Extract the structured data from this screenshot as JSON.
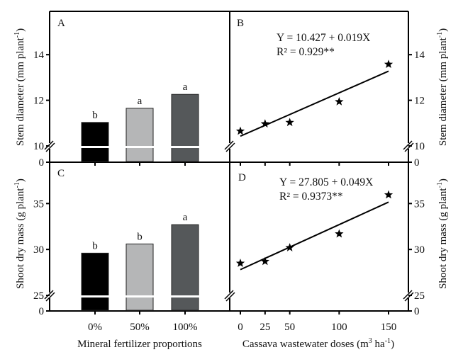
{
  "chart_data": [
    {
      "panel": "A",
      "type": "bar",
      "ylabel": "Stem diameter (mm plant",
      "ylabel_sup": "-1",
      "ylabel_close": ")",
      "xlabel": "Mineral fertilizer proportions",
      "categories": [
        "0%",
        "50%",
        "100%"
      ],
      "values": [
        11.03,
        11.65,
        12.26
      ],
      "significance": [
        "b",
        "a",
        "a"
      ],
      "colors": [
        "#000000",
        "#b5b6b7",
        "#55585a"
      ],
      "yticks": [
        10,
        12,
        14
      ],
      "ybreak_low_label": "0",
      "ylim": [
        10,
        15.9
      ],
      "axis_break": true
    },
    {
      "panel": "B",
      "type": "scatter",
      "ylabel": "Stem diameter (mm plant",
      "ylabel_sup": "-1",
      "ylabel_close": ")",
      "x": [
        0,
        25,
        50,
        100,
        150
      ],
      "y": [
        10.65,
        10.97,
        11.03,
        11.94,
        13.58
      ],
      "marker": "star",
      "fit": {
        "intercept": 10.427,
        "slope": 0.019
      },
      "equation": "Y = 10.427 + 0.019X",
      "r2_label": "R² = 0.929**",
      "yticks": [
        10,
        12,
        14
      ],
      "ybreak_low_label": "0",
      "ylim": [
        10,
        15.9
      ],
      "xlim": [
        -9,
        169
      ],
      "axis_break": true
    },
    {
      "panel": "C",
      "type": "bar",
      "ylabel": "Shoot dry mass (g plant",
      "ylabel_sup": "-1",
      "ylabel_close": ")",
      "xlabel": "Mineral fertilizer proportions",
      "categories": [
        "0%",
        "50%",
        "100%"
      ],
      "values": [
        29.6,
        30.6,
        32.7
      ],
      "significance": [
        "b",
        "b",
        "a"
      ],
      "colors": [
        "#000000",
        "#b5b6b7",
        "#55585a"
      ],
      "yticks": [
        25,
        30,
        35
      ],
      "ybreak_low_label": "0",
      "ylim": [
        25,
        39.5
      ],
      "axis_break": true
    },
    {
      "panel": "D",
      "type": "scatter",
      "ylabel": "Shoot dry mass (g plant",
      "ylabel_sup": "-1",
      "ylabel_close": ")",
      "xlabel": "Cassava wastewater doses (m",
      "xlabel_sup1": "3",
      "xlabel_mid": " ha",
      "xlabel_sup2": "-1",
      "xlabel_close": ")",
      "x": [
        0,
        25,
        50,
        100,
        150
      ],
      "y": [
        28.5,
        28.7,
        30.2,
        31.7,
        35.95
      ],
      "xticks": [
        0,
        25,
        50,
        100,
        150
      ],
      "marker": "star",
      "fit": {
        "intercept": 27.805,
        "slope": 0.049
      },
      "equation": "Y = 27.805 + 0.049X",
      "r2_label": "R² = 0.9373**",
      "yticks": [
        25,
        30,
        35
      ],
      "ybreak_low_label": "0",
      "ylim": [
        25,
        39.5
      ],
      "xlim": [
        -9,
        169
      ],
      "axis_break": true
    }
  ]
}
